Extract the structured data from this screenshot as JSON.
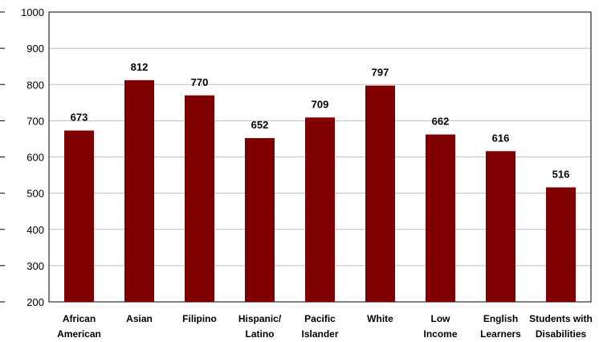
{
  "chart_data": {
    "type": "bar",
    "categories": [
      [
        "African",
        "American"
      ],
      [
        "Asian"
      ],
      [
        "Filipino"
      ],
      [
        "Hispanic/",
        "Latino"
      ],
      [
        "Pacific",
        "Islander"
      ],
      [
        "White"
      ],
      [
        "Low",
        "Income"
      ],
      [
        "English",
        "Learners"
      ],
      [
        "Students with",
        "Disabilities"
      ]
    ],
    "values": [
      673,
      812,
      770,
      652,
      709,
      797,
      662,
      616,
      516
    ],
    "ylim": [
      200,
      1000
    ],
    "yticks": [
      200,
      300,
      400,
      500,
      600,
      700,
      800,
      900,
      1000
    ],
    "bar_color": "#7f0000",
    "grid": true,
    "legend": "none"
  }
}
